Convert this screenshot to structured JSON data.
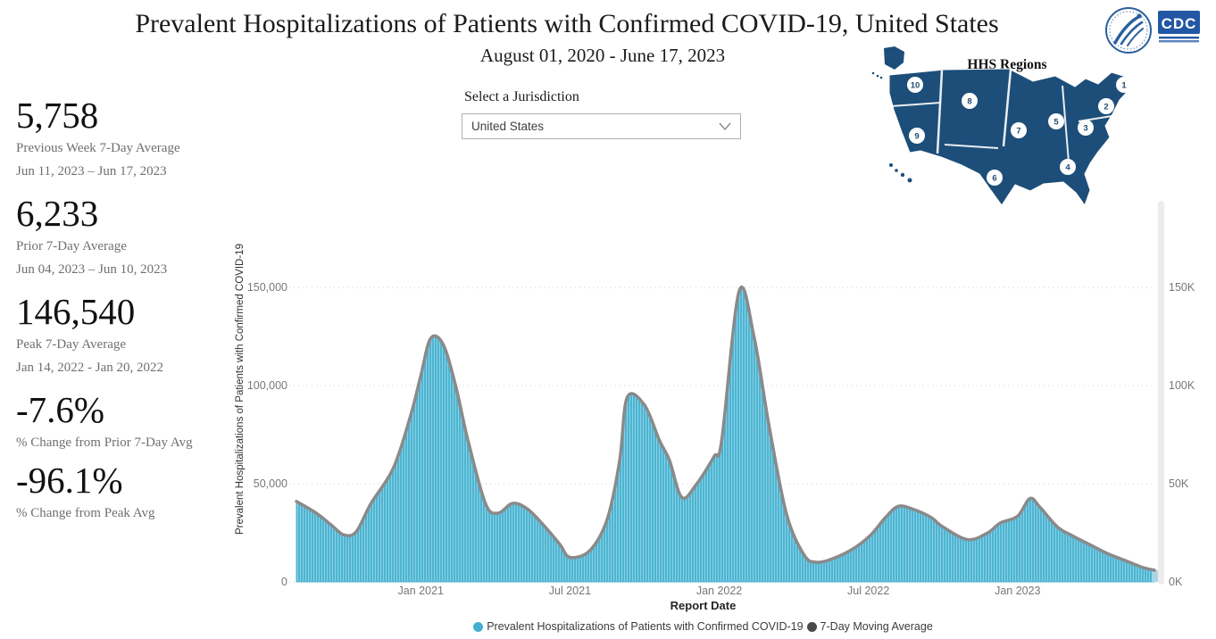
{
  "header": {
    "title": "Prevalent Hospitalizations of Patients with Confirmed COVID-19, United States",
    "subtitle": "August 01, 2020 - June 17, 2023"
  },
  "logos": {
    "cdc_text": "CDC"
  },
  "map": {
    "title": "HHS Regions",
    "region_numbers": [
      "1",
      "2",
      "3",
      "4",
      "5",
      "6",
      "7",
      "8",
      "9",
      "10"
    ],
    "fill_color": "#1C4E79"
  },
  "jurisdiction": {
    "label": "Select a Jurisdiction",
    "value": "United States"
  },
  "stats": [
    {
      "value": "5,758",
      "label": "Previous Week 7-Day Average",
      "dates": "Jun 11, 2023 – Jun 17, 2023"
    },
    {
      "value": "6,233",
      "label": "Prior 7-Day Average",
      "dates": "Jun 04, 2023 – Jun 10, 2023"
    },
    {
      "value": "146,540",
      "label": "Peak 7-Day Average",
      "dates": "Jan 14, 2022 - Jan 20, 2022"
    },
    {
      "value": "-7.6%",
      "label": "% Change from Prior 7-Day Avg"
    },
    {
      "value": "-96.1%",
      "label": "% Change from Peak Avg"
    }
  ],
  "chart_data": {
    "type": "area",
    "xlabel": "Report Date",
    "ylabel": "Prevalent Hospitalizations of Patients with Confirmed COVID-19",
    "x_unit": "months since 2020-08-01",
    "x_range": [
      0,
      34.5
    ],
    "ylim": [
      0,
      150000
    ],
    "grid": "dotted-horizontal",
    "legend_position": "bottom-center",
    "y_ticks": [
      {
        "value": 0,
        "left_label": "0",
        "right_label": "0K"
      },
      {
        "value": 50000,
        "left_label": "50,000",
        "right_label": "50K"
      },
      {
        "value": 100000,
        "left_label": "100,000",
        "right_label": "100K"
      },
      {
        "value": 150000,
        "left_label": "150,000",
        "right_label": "150K"
      }
    ],
    "x_ticks": [
      {
        "pos": 5,
        "label": "Jan 2021"
      },
      {
        "pos": 11,
        "label": "Jul 2021"
      },
      {
        "pos": 17,
        "label": "Jan 2022"
      },
      {
        "pos": 23,
        "label": "Jul 2022"
      },
      {
        "pos": 29,
        "label": "Jan 2023"
      }
    ],
    "legend": [
      {
        "label": "Prevalent Hospitalizations of Patients with Confirmed COVID-19",
        "color": "#45AFD1"
      },
      {
        "label": "7-Day Moving Average",
        "color": "#4a4a4a"
      }
    ],
    "series_colors": {
      "area": "#4CB5D3",
      "moving_average_line": "#8A8A8A"
    },
    "points": [
      [
        0,
        41000
      ],
      [
        0.8,
        35000
      ],
      [
        1.4,
        29000
      ],
      [
        1.9,
        24000
      ],
      [
        2.4,
        25500
      ],
      [
        3.0,
        40000
      ],
      [
        3.9,
        58000
      ],
      [
        4.6,
        85000
      ],
      [
        5.0,
        105000
      ],
      [
        5.4,
        124000
      ],
      [
        5.9,
        121000
      ],
      [
        6.4,
        100000
      ],
      [
        6.9,
        72000
      ],
      [
        7.6,
        40000
      ],
      [
        8.1,
        35000
      ],
      [
        8.7,
        40000
      ],
      [
        9.3,
        37000
      ],
      [
        10.0,
        28000
      ],
      [
        10.6,
        19000
      ],
      [
        11.0,
        12500
      ],
      [
        11.8,
        16000
      ],
      [
        12.5,
        32000
      ],
      [
        13.0,
        62000
      ],
      [
        13.3,
        94000
      ],
      [
        14.0,
        90000
      ],
      [
        14.6,
        72000
      ],
      [
        15.0,
        62000
      ],
      [
        15.5,
        43000
      ],
      [
        16.1,
        50000
      ],
      [
        16.8,
        64000
      ],
      [
        17.1,
        72000
      ],
      [
        17.8,
        148000
      ],
      [
        18.4,
        125000
      ],
      [
        19.0,
        80000
      ],
      [
        19.7,
        35000
      ],
      [
        20.4,
        14000
      ],
      [
        20.9,
        10000
      ],
      [
        21.6,
        12000
      ],
      [
        22.4,
        17000
      ],
      [
        23.1,
        24000
      ],
      [
        23.7,
        33000
      ],
      [
        24.2,
        38500
      ],
      [
        24.8,
        37000
      ],
      [
        25.5,
        33000
      ],
      [
        26.0,
        28000
      ],
      [
        27.0,
        21500
      ],
      [
        27.8,
        25000
      ],
      [
        28.3,
        30000
      ],
      [
        29.0,
        33500
      ],
      [
        29.5,
        42500
      ],
      [
        29.9,
        38000
      ],
      [
        30.6,
        28000
      ],
      [
        31.2,
        23500
      ],
      [
        31.9,
        19000
      ],
      [
        32.6,
        14500
      ],
      [
        33.3,
        11000
      ],
      [
        34.0,
        7500
      ],
      [
        34.5,
        5900
      ]
    ]
  }
}
